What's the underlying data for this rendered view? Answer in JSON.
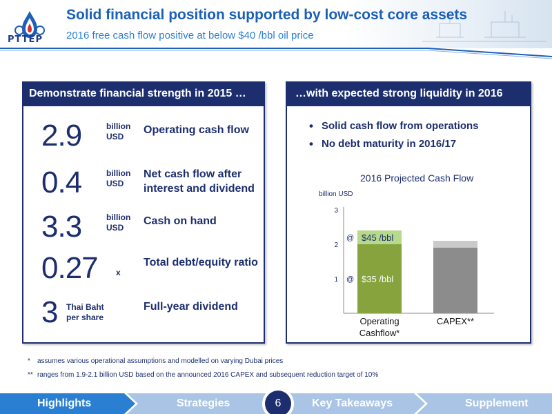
{
  "header": {
    "logo_text": "PTTEP",
    "title": "Solid financial position supported by low-cost core assets",
    "subtitle": "2016 free cash flow positive at below $40 /bbl oil price"
  },
  "left_panel": {
    "heading": "Demonstrate financial strength in 2015 …",
    "metrics": [
      {
        "value": "2.9",
        "unit_line1": "billion",
        "unit_line2": "USD",
        "label": "Operating cash flow"
      },
      {
        "value": "0.4",
        "unit_line1": "billion",
        "unit_line2": "USD",
        "label_line1": "Net cash flow after",
        "label_line2": "interest and dividend"
      },
      {
        "value": "3.3",
        "unit_line1": "billion",
        "unit_line2": "USD",
        "label": "Cash on hand"
      },
      {
        "value": "0.27",
        "unit_suffix": "x",
        "label": "Total debt/equity ratio"
      },
      {
        "value": "3",
        "unit_line1": "Thai Baht",
        "unit_line2": "per share",
        "label": "Full-year dividend"
      }
    ]
  },
  "right_panel": {
    "heading": "…with expected strong liquidity in 2016",
    "bullets": [
      "Solid cash flow from operations",
      "No debt maturity in 2016/17"
    ]
  },
  "chart_data": {
    "type": "bar",
    "title": "2016 Projected Cash Flow",
    "ylabel": "billion USD",
    "ylim": [
      0,
      3
    ],
    "yticks": [
      "1",
      "2",
      "3"
    ],
    "categories": [
      "Operating Cashflow*",
      "CAPEX**"
    ],
    "category_lines": [
      [
        "Operating",
        "Cashflow*"
      ],
      [
        "CAPEX**"
      ]
    ],
    "series": [
      {
        "values": [
          2.0,
          1.9
        ],
        "label": "$35 /bbl",
        "marker": "@"
      },
      {
        "values": [
          0.4,
          0.2
        ],
        "label": "$45 /bbl",
        "marker": "@"
      }
    ],
    "colors": {
      "operating_base": "#86a33e",
      "operating_top": "#b7d98a",
      "capex_base": "#8c8c8c",
      "capex_range": "#bdbdbd"
    }
  },
  "footnotes": [
    {
      "mark": "*",
      "text": "assumes various operational assumptions and modelled on varying Dubai prices"
    },
    {
      "mark": "**",
      "text": "ranges from 1.9-2.1 billion USD based on the announced 2016 CAPEX and subsequent reduction target of 10%"
    }
  ],
  "footer": {
    "items": [
      "Highlights",
      "Strategies",
      "Key Takeaways",
      "Supplement"
    ],
    "page_number": "6",
    "colors": {
      "active": "#2b7fd3",
      "inactive": "#a9c4e4"
    }
  }
}
